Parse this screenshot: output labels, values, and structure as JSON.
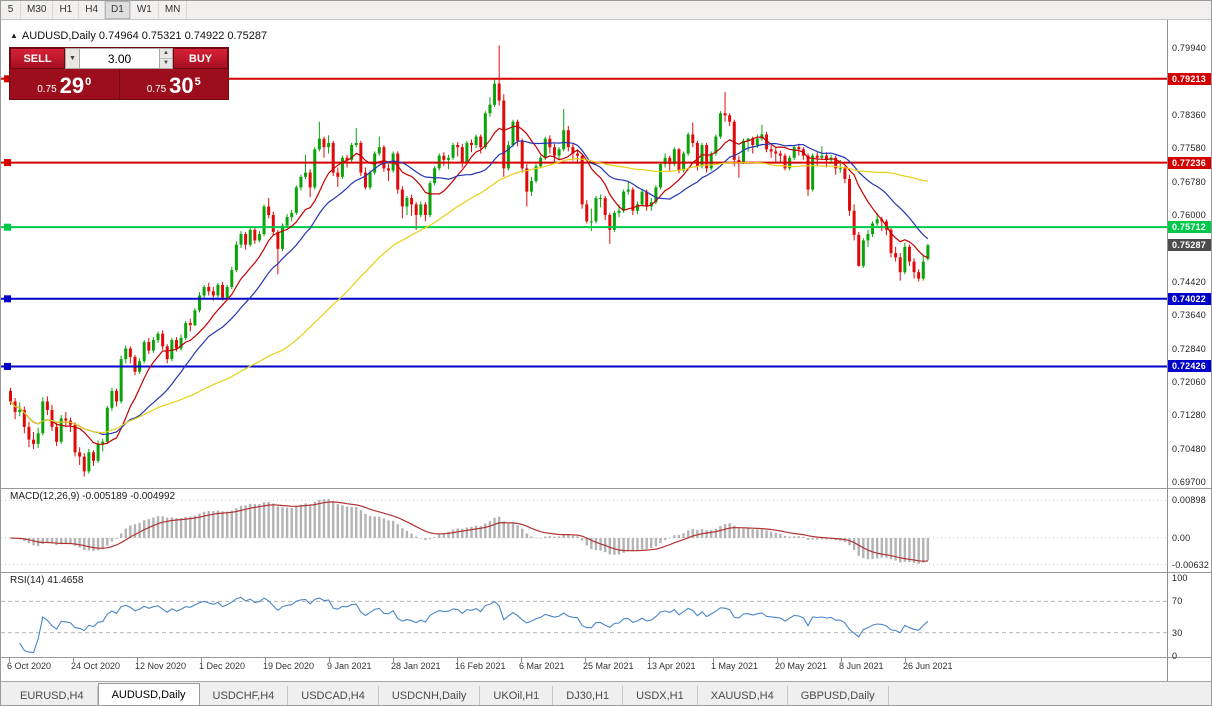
{
  "toolbar": {
    "periods": [
      "5",
      "M30",
      "H1",
      "H4",
      "D1",
      "W1",
      "MN"
    ],
    "active": "D1"
  },
  "chart": {
    "title_marker": "▲",
    "title_text": "AUDUSD,Daily 0.74964 0.75321 0.74922 0.75287"
  },
  "trade_panel": {
    "sell_label": "SELL",
    "buy_label": "BUY",
    "volume": "3.00",
    "sell_price": {
      "small": "0.75",
      "big": "29",
      "sup": "0"
    },
    "buy_price": {
      "small": "0.75",
      "big": "30",
      "sup": "5"
    }
  },
  "indicators": {
    "macd_label": "MACD(12,26,9) -0.005189 -0.004992",
    "rsi_label": "RSI(14) 41.4658"
  },
  "tabbar": {
    "tabs": [
      "EURUSD,H4",
      "AUDUSD,Daily",
      "USDCHF,H4",
      "USDCAD,H4",
      "USDCNH,Daily",
      "UKOil,H1",
      "DJ30,H1",
      "USDX,H1",
      "XAUUSD,H4",
      "GBPUSD,Daily"
    ],
    "active": "AUDUSD,Daily"
  },
  "colors": {
    "up_candle": "#0aa30a",
    "down_candle": "#e00a0a",
    "ma_fast": "#c40000",
    "ma_mid": "#2336b4",
    "ma_slow": "#e7d117",
    "macd_histogram": "#b3b3b3",
    "macd_signal": "#b03434",
    "rsi_line": "#4a86c8",
    "current_price_box": "#4c4c4c",
    "grid": "#c9c9c9"
  },
  "chart_data": {
    "type": "candlestick",
    "symbol": "AUDUSD",
    "timeframe": "Daily",
    "ohlc_current": {
      "open": 0.74964,
      "high": 0.75321,
      "low": 0.74922,
      "close": 0.75287
    },
    "current_price": 0.75287,
    "y_ticks": [
      0.7994,
      0.7836,
      0.7758,
      0.7678,
      0.76,
      0.7442,
      0.7364,
      0.7284,
      0.7206,
      0.7128,
      0.7048,
      0.697
    ],
    "hlines": [
      {
        "price": 0.79213,
        "color": "#d40000",
        "width": 2
      },
      {
        "price": 0.77236,
        "color": "#d40000",
        "width": 2
      },
      {
        "price": 0.75712,
        "color": "#00c94a",
        "width": 2
      },
      {
        "price": 0.74022,
        "color": "#0000c8",
        "width": 2
      },
      {
        "price": 0.72426,
        "color": "#0000c8",
        "width": 2
      }
    ],
    "moving_averages": [
      {
        "period": 10,
        "color": "#c40000"
      },
      {
        "period": 20,
        "color": "#2336b4"
      },
      {
        "period": 60,
        "color": "#e7d117"
      }
    ],
    "macd": {
      "params": [
        12,
        26,
        9
      ],
      "value": -0.005189,
      "signal": -0.004992,
      "ticks": [
        0.00898,
        0,
        -0.00632
      ]
    },
    "rsi": {
      "period": 14,
      "value": 41.4658,
      "ticks": [
        100,
        70,
        30,
        0
      ],
      "levels": [
        70,
        30
      ]
    },
    "x_labels": [
      "6 Oct 2020",
      "24 Oct 2020",
      "12 Nov 2020",
      "1 Dec 2020",
      "19 Dec 2020",
      "9 Jan 2021",
      "28 Jan 2021",
      "16 Feb 2021",
      "6 Mar 2021",
      "25 Mar 2021",
      "13 Apr 2021",
      "1 May 2021",
      "20 May 2021",
      "8 Jun 2021",
      "26 Jun 2021"
    ],
    "candles": [
      [
        0.7185,
        0.7192,
        0.7152,
        0.716
      ],
      [
        0.716,
        0.7168,
        0.7118,
        0.7135
      ],
      [
        0.7135,
        0.7158,
        0.7125,
        0.714
      ],
      [
        0.714,
        0.7148,
        0.7085,
        0.71
      ],
      [
        0.71,
        0.7112,
        0.7052,
        0.707
      ],
      [
        0.707,
        0.7088,
        0.7048,
        0.706
      ],
      [
        0.706,
        0.7098,
        0.705,
        0.7085
      ],
      [
        0.7085,
        0.717,
        0.708,
        0.716
      ],
      [
        0.716,
        0.7172,
        0.7128,
        0.714
      ],
      [
        0.714,
        0.7152,
        0.709,
        0.71
      ],
      [
        0.71,
        0.711,
        0.7055,
        0.7065
      ],
      [
        0.7065,
        0.7128,
        0.706,
        0.712
      ],
      [
        0.712,
        0.7135,
        0.71,
        0.7115
      ],
      [
        0.7115,
        0.7122,
        0.7088,
        0.7105
      ],
      [
        0.7105,
        0.711,
        0.703,
        0.704
      ],
      [
        0.704,
        0.7052,
        0.701,
        0.703
      ],
      [
        0.703,
        0.7038,
        0.6983,
        0.6995
      ],
      [
        0.6995,
        0.7048,
        0.699,
        0.704
      ],
      [
        0.704,
        0.7045,
        0.7008,
        0.702
      ],
      [
        0.702,
        0.7068,
        0.7015,
        0.706
      ],
      [
        0.706,
        0.7072,
        0.7042,
        0.7065
      ],
      [
        0.7065,
        0.715,
        0.706,
        0.7145
      ],
      [
        0.7145,
        0.7192,
        0.7138,
        0.7185
      ],
      [
        0.7185,
        0.719,
        0.7148,
        0.716
      ],
      [
        0.716,
        0.7268,
        0.7155,
        0.726
      ],
      [
        0.726,
        0.7292,
        0.725,
        0.7285
      ],
      [
        0.7285,
        0.729,
        0.725,
        0.7265
      ],
      [
        0.7265,
        0.727,
        0.7222,
        0.723
      ],
      [
        0.723,
        0.7262,
        0.7225,
        0.7255
      ],
      [
        0.7255,
        0.7305,
        0.725,
        0.73
      ],
      [
        0.73,
        0.731,
        0.7272,
        0.728
      ],
      [
        0.728,
        0.7312,
        0.7275,
        0.7305
      ],
      [
        0.7305,
        0.7325,
        0.7298,
        0.732
      ],
      [
        0.732,
        0.7328,
        0.7282,
        0.729
      ],
      [
        0.729,
        0.7295,
        0.725,
        0.726
      ],
      [
        0.726,
        0.731,
        0.7255,
        0.7305
      ],
      [
        0.7305,
        0.7312,
        0.7278,
        0.7285
      ],
      [
        0.7285,
        0.7318,
        0.728,
        0.731
      ],
      [
        0.731,
        0.735,
        0.7305,
        0.7345
      ],
      [
        0.7345,
        0.7355,
        0.7325,
        0.734
      ],
      [
        0.734,
        0.738,
        0.7338,
        0.7375
      ],
      [
        0.7375,
        0.7418,
        0.737,
        0.741
      ],
      [
        0.741,
        0.7435,
        0.7402,
        0.743
      ],
      [
        0.743,
        0.744,
        0.741,
        0.742
      ],
      [
        0.742,
        0.743,
        0.7398,
        0.741
      ],
      [
        0.741,
        0.744,
        0.7405,
        0.7435
      ],
      [
        0.7435,
        0.7442,
        0.7398,
        0.7405
      ],
      [
        0.7405,
        0.7435,
        0.74,
        0.743
      ],
      [
        0.743,
        0.7478,
        0.7425,
        0.747
      ],
      [
        0.747,
        0.7538,
        0.7465,
        0.753
      ],
      [
        0.753,
        0.7562,
        0.7522,
        0.7555
      ],
      [
        0.7555,
        0.756,
        0.7518,
        0.753
      ],
      [
        0.753,
        0.7572,
        0.7525,
        0.7565
      ],
      [
        0.7565,
        0.7572,
        0.7532,
        0.754
      ],
      [
        0.754,
        0.7562,
        0.7535,
        0.7555
      ],
      [
        0.7555,
        0.7625,
        0.755,
        0.762
      ],
      [
        0.762,
        0.764,
        0.7592,
        0.76
      ],
      [
        0.76,
        0.7608,
        0.7552,
        0.756
      ],
      [
        0.756,
        0.7565,
        0.746,
        0.752
      ],
      [
        0.752,
        0.758,
        0.7515,
        0.7575
      ],
      [
        0.7575,
        0.7602,
        0.757,
        0.7595
      ],
      [
        0.7595,
        0.7612,
        0.7585,
        0.7605
      ],
      [
        0.7605,
        0.767,
        0.76,
        0.7665
      ],
      [
        0.7665,
        0.7695,
        0.7658,
        0.769
      ],
      [
        0.769,
        0.7742,
        0.7685,
        0.77
      ],
      [
        0.77,
        0.7708,
        0.7642,
        0.7665
      ],
      [
        0.7665,
        0.776,
        0.766,
        0.7755
      ],
      [
        0.7755,
        0.782,
        0.775,
        0.778
      ],
      [
        0.778,
        0.7785,
        0.7735,
        0.776
      ],
      [
        0.776,
        0.7788,
        0.7745,
        0.777
      ],
      [
        0.777,
        0.7775,
        0.7692,
        0.77
      ],
      [
        0.77,
        0.7712,
        0.7666,
        0.769
      ],
      [
        0.769,
        0.774,
        0.7685,
        0.7735
      ],
      [
        0.7735,
        0.7742,
        0.7712,
        0.773
      ],
      [
        0.773,
        0.777,
        0.7725,
        0.7765
      ],
      [
        0.7765,
        0.7805,
        0.776,
        0.777
      ],
      [
        0.777,
        0.7775,
        0.7692,
        0.77
      ],
      [
        0.77,
        0.7712,
        0.766,
        0.7665
      ],
      [
        0.7665,
        0.7705,
        0.766,
        0.77
      ],
      [
        0.77,
        0.775,
        0.7695,
        0.7745
      ],
      [
        0.7745,
        0.7785,
        0.774,
        0.776
      ],
      [
        0.776,
        0.7765,
        0.7702,
        0.771
      ],
      [
        0.771,
        0.772,
        0.768,
        0.7705
      ],
      [
        0.7705,
        0.775,
        0.77,
        0.7745
      ],
      [
        0.7745,
        0.775,
        0.765,
        0.766
      ],
      [
        0.766,
        0.7668,
        0.7592,
        0.762
      ],
      [
        0.762,
        0.7645,
        0.76,
        0.764
      ],
      [
        0.764,
        0.7648,
        0.7598,
        0.7625
      ],
      [
        0.7625,
        0.763,
        0.7565,
        0.76
      ],
      [
        0.76,
        0.7632,
        0.7595,
        0.7625
      ],
      [
        0.7625,
        0.763,
        0.7585,
        0.76
      ],
      [
        0.76,
        0.768,
        0.7595,
        0.7675
      ],
      [
        0.7675,
        0.7715,
        0.767,
        0.771
      ],
      [
        0.771,
        0.7745,
        0.7705,
        0.774
      ],
      [
        0.774,
        0.7748,
        0.7715,
        0.773
      ],
      [
        0.773,
        0.7742,
        0.7708,
        0.7735
      ],
      [
        0.7735,
        0.777,
        0.773,
        0.7765
      ],
      [
        0.7765,
        0.7772,
        0.7738,
        0.776
      ],
      [
        0.776,
        0.7768,
        0.7712,
        0.7725
      ],
      [
        0.7725,
        0.7775,
        0.772,
        0.777
      ],
      [
        0.777,
        0.7778,
        0.7748,
        0.7765
      ],
      [
        0.7765,
        0.779,
        0.7758,
        0.7785
      ],
      [
        0.7785,
        0.779,
        0.7745,
        0.776
      ],
      [
        0.776,
        0.7845,
        0.7755,
        0.784
      ],
      [
        0.784,
        0.7878,
        0.7832,
        0.786
      ],
      [
        0.786,
        0.792,
        0.7855,
        0.791
      ],
      [
        0.791,
        0.8,
        0.7858,
        0.787
      ],
      [
        0.787,
        0.7885,
        0.769,
        0.771
      ],
      [
        0.771,
        0.7775,
        0.7705,
        0.7765
      ],
      [
        0.7765,
        0.7825,
        0.776,
        0.782
      ],
      [
        0.782,
        0.7825,
        0.7762,
        0.7775
      ],
      [
        0.7775,
        0.778,
        0.77,
        0.771
      ],
      [
        0.771,
        0.772,
        0.762,
        0.7655
      ],
      [
        0.7655,
        0.769,
        0.7645,
        0.768
      ],
      [
        0.768,
        0.772,
        0.7675,
        0.7715
      ],
      [
        0.7715,
        0.774,
        0.771,
        0.7735
      ],
      [
        0.7735,
        0.7785,
        0.773,
        0.778
      ],
      [
        0.778,
        0.7788,
        0.7745,
        0.776
      ],
      [
        0.776,
        0.7768,
        0.7725,
        0.774
      ],
      [
        0.774,
        0.776,
        0.773,
        0.7755
      ],
      [
        0.7755,
        0.785,
        0.775,
        0.78
      ],
      [
        0.78,
        0.781,
        0.775,
        0.776
      ],
      [
        0.776,
        0.7768,
        0.7728,
        0.7745
      ],
      [
        0.7745,
        0.7755,
        0.772,
        0.774
      ],
      [
        0.774,
        0.7742,
        0.7615,
        0.7625
      ],
      [
        0.7625,
        0.7635,
        0.758,
        0.7585
      ],
      [
        0.7585,
        0.7615,
        0.7562,
        0.7585
      ],
      [
        0.7585,
        0.7645,
        0.758,
        0.764
      ],
      [
        0.764,
        0.7648,
        0.7618,
        0.764
      ],
      [
        0.764,
        0.7645,
        0.7588,
        0.76
      ],
      [
        0.76,
        0.7605,
        0.7532,
        0.7565
      ],
      [
        0.7565,
        0.761,
        0.756,
        0.7605
      ],
      [
        0.7605,
        0.7625,
        0.7595,
        0.761
      ],
      [
        0.761,
        0.766,
        0.7605,
        0.7655
      ],
      [
        0.7655,
        0.7678,
        0.7648,
        0.766
      ],
      [
        0.766,
        0.7665,
        0.76,
        0.761
      ],
      [
        0.761,
        0.7632,
        0.7602,
        0.7625
      ],
      [
        0.7625,
        0.766,
        0.762,
        0.7655
      ],
      [
        0.7655,
        0.766,
        0.761,
        0.762
      ],
      [
        0.762,
        0.764,
        0.761,
        0.763
      ],
      [
        0.763,
        0.767,
        0.7625,
        0.7665
      ],
      [
        0.7665,
        0.7725,
        0.766,
        0.772
      ],
      [
        0.772,
        0.7745,
        0.7712,
        0.7735
      ],
      [
        0.7735,
        0.774,
        0.7705,
        0.772
      ],
      [
        0.772,
        0.776,
        0.7715,
        0.7755
      ],
      [
        0.7755,
        0.7758,
        0.7698,
        0.7705
      ],
      [
        0.7705,
        0.775,
        0.77,
        0.7745
      ],
      [
        0.7745,
        0.7795,
        0.774,
        0.779
      ],
      [
        0.779,
        0.7818,
        0.776,
        0.777
      ],
      [
        0.777,
        0.7775,
        0.7705,
        0.7715
      ],
      [
        0.7715,
        0.777,
        0.771,
        0.7765
      ],
      [
        0.7765,
        0.777,
        0.77,
        0.771
      ],
      [
        0.771,
        0.775,
        0.7705,
        0.7745
      ],
      [
        0.7745,
        0.779,
        0.774,
        0.7785
      ],
      [
        0.7785,
        0.7845,
        0.778,
        0.784
      ],
      [
        0.784,
        0.789,
        0.782,
        0.7835
      ],
      [
        0.7835,
        0.784,
        0.781,
        0.782
      ],
      [
        0.782,
        0.7825,
        0.7715,
        0.773
      ],
      [
        0.773,
        0.774,
        0.7688,
        0.7725
      ],
      [
        0.7725,
        0.778,
        0.772,
        0.7775
      ],
      [
        0.7775,
        0.7782,
        0.775,
        0.778
      ],
      [
        0.778,
        0.7785,
        0.7745,
        0.7765
      ],
      [
        0.7765,
        0.779,
        0.7758,
        0.778
      ],
      [
        0.778,
        0.7813,
        0.7775,
        0.779
      ],
      [
        0.779,
        0.7796,
        0.7748,
        0.7755
      ],
      [
        0.7755,
        0.7765,
        0.7735,
        0.775
      ],
      [
        0.775,
        0.7758,
        0.7725,
        0.7745
      ],
      [
        0.7745,
        0.7752,
        0.7722,
        0.774
      ],
      [
        0.774,
        0.7745,
        0.7705,
        0.771
      ],
      [
        0.771,
        0.774,
        0.7705,
        0.7735
      ],
      [
        0.7735,
        0.7765,
        0.773,
        0.776
      ],
      [
        0.776,
        0.7768,
        0.774,
        0.7755
      ],
      [
        0.7755,
        0.776,
        0.773,
        0.774
      ],
      [
        0.774,
        0.7745,
        0.7645,
        0.766
      ],
      [
        0.766,
        0.7745,
        0.7655,
        0.774
      ],
      [
        0.774,
        0.7748,
        0.7715,
        0.7735
      ],
      [
        0.7735,
        0.7762,
        0.773,
        0.774
      ],
      [
        0.774,
        0.7748,
        0.7712,
        0.773
      ],
      [
        0.773,
        0.7742,
        0.772,
        0.7735
      ],
      [
        0.7735,
        0.774,
        0.7695,
        0.771
      ],
      [
        0.771,
        0.773,
        0.77,
        0.771
      ],
      [
        0.771,
        0.7715,
        0.7675,
        0.7685
      ],
      [
        0.7685,
        0.7695,
        0.7598,
        0.761
      ],
      [
        0.761,
        0.7625,
        0.754,
        0.7553
      ],
      [
        0.7553,
        0.756,
        0.7478,
        0.748
      ],
      [
        0.748,
        0.7545,
        0.7475,
        0.754
      ],
      [
        0.754,
        0.7565,
        0.7525,
        0.7555
      ],
      [
        0.7555,
        0.7585,
        0.7548,
        0.758
      ],
      [
        0.758,
        0.7605,
        0.7572,
        0.759
      ],
      [
        0.759,
        0.7596,
        0.7562,
        0.7585
      ],
      [
        0.7585,
        0.759,
        0.7552,
        0.7565
      ],
      [
        0.7565,
        0.757,
        0.75,
        0.751
      ],
      [
        0.751,
        0.7525,
        0.749,
        0.75
      ],
      [
        0.75,
        0.751,
        0.7445,
        0.7465
      ],
      [
        0.7465,
        0.7535,
        0.746,
        0.7525
      ],
      [
        0.7525,
        0.753,
        0.748,
        0.749
      ],
      [
        0.749,
        0.7498,
        0.745,
        0.7465
      ],
      [
        0.7465,
        0.7472,
        0.7443,
        0.745
      ],
      [
        0.745,
        0.7505,
        0.7445,
        0.749
      ],
      [
        0.74964,
        0.75321,
        0.74922,
        0.75287
      ]
    ]
  }
}
